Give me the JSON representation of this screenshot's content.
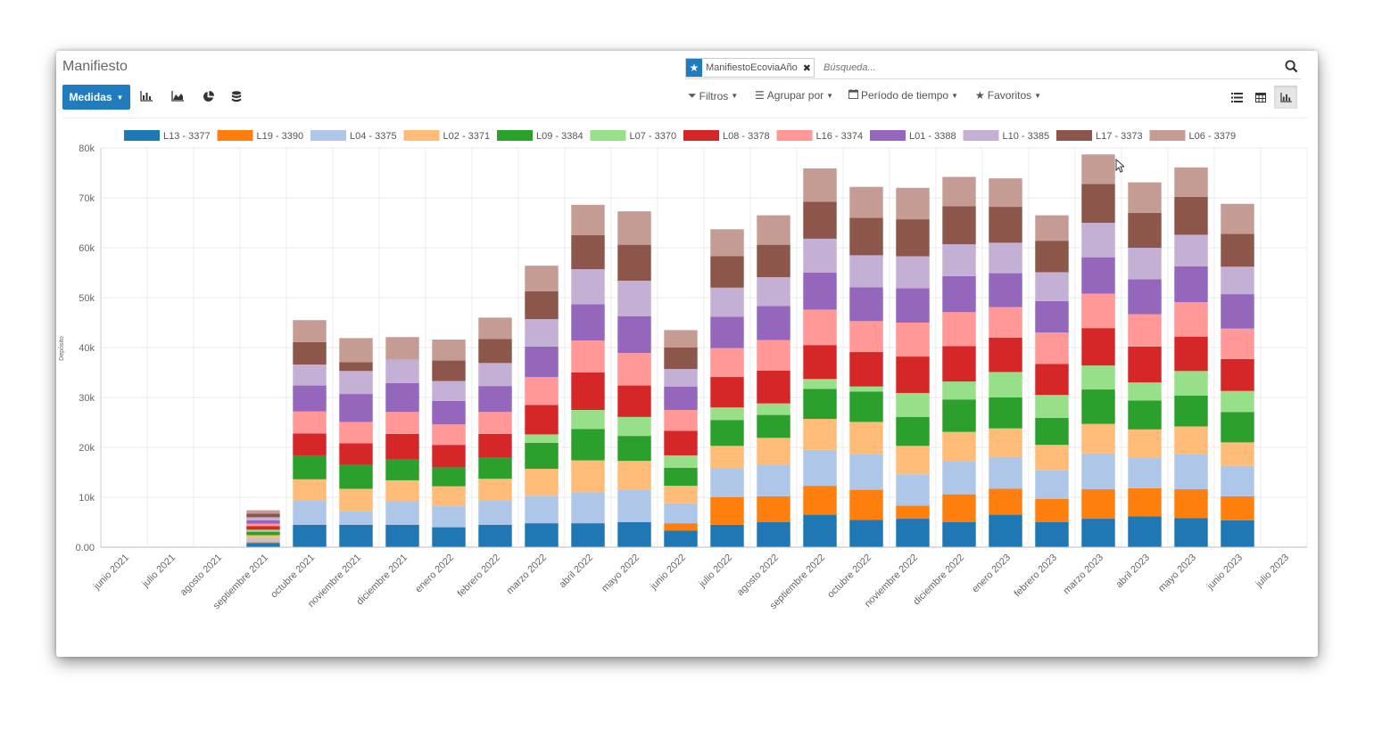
{
  "app": {
    "title": "Manifiesto"
  },
  "search": {
    "facet_label": "ManifiestoEcoviaAño",
    "facet_icon": "star-icon",
    "placeholder": "Búsqueda..."
  },
  "toolbar": {
    "measures_label": "Medidas",
    "chart_icons": [
      "bar-chart-icon",
      "area-chart-icon",
      "pie-chart-icon",
      "database-icon"
    ],
    "filters_label": "Filtros",
    "group_by_label": "Agrupar por",
    "period_label": "Período de tiempo",
    "favorites_label": "Favoritos",
    "views": [
      "list-view-icon",
      "pivot-view-icon",
      "graph-view-icon"
    ]
  },
  "colors": {
    "accent": "#1f7cbf"
  },
  "chart_data": {
    "type": "bar",
    "stacked": true,
    "ylabel": "Depósito",
    "ylim": [
      0,
      80000
    ],
    "yticks": [
      "0.00",
      "10k",
      "20k",
      "30k",
      "40k",
      "50k",
      "60k",
      "70k",
      "80k"
    ],
    "legend_position": "top",
    "categories": [
      "junio 2021",
      "julio 2021",
      "agosto 2021",
      "septiembre 2021",
      "octubre 2021",
      "noviembre 2021",
      "diciembre 2021",
      "enero 2022",
      "febrero 2022",
      "marzo 2022",
      "abril 2022",
      "mayo 2022",
      "junio 2022",
      "julio 2022",
      "agosto 2022",
      "septiembre 2022",
      "octubre 2022",
      "noviembre 2022",
      "diciembre 2022",
      "enero 2023",
      "febrero 2023",
      "marzo 2023",
      "abril 2023",
      "mayo 2023",
      "junio 2023",
      "julio 2023"
    ],
    "series": [
      {
        "name": "L13 - 3377",
        "color": "#1f77b4",
        "values": [
          0,
          0,
          0,
          800,
          4500,
          4500,
          4500,
          4000,
          4500,
          4800,
          4800,
          5000,
          3300,
          4500,
          5000,
          6500,
          5500,
          5700,
          5000,
          6500,
          5000,
          5700,
          6200,
          5800,
          5400,
          0
        ]
      },
      {
        "name": "L19 - 3390",
        "color": "#ff7f0e",
        "values": [
          0,
          0,
          0,
          200,
          0,
          0,
          0,
          0,
          0,
          0,
          0,
          0,
          1500,
          5500,
          5200,
          5800,
          6000,
          2600,
          5600,
          5200,
          4700,
          5900,
          5600,
          5800,
          4800,
          0
        ]
      },
      {
        "name": "L04 - 3375",
        "color": "#aec7e8",
        "values": [
          0,
          0,
          0,
          700,
          4800,
          2700,
          4700,
          4200,
          4800,
          5500,
          6200,
          6500,
          4000,
          5800,
          6300,
          7200,
          7200,
          6300,
          6700,
          6400,
          5700,
          7200,
          6200,
          7100,
          6100,
          0
        ]
      },
      {
        "name": "L02 - 3371",
        "color": "#ffbb78",
        "values": [
          0,
          0,
          0,
          700,
          4300,
          4500,
          4200,
          4000,
          4400,
          5400,
          6400,
          5800,
          3500,
          4500,
          5400,
          6200,
          6400,
          5700,
          5800,
          5700,
          5100,
          5900,
          5600,
          5500,
          4700,
          0
        ]
      },
      {
        "name": "L09 - 3384",
        "color": "#2ca02c",
        "values": [
          0,
          0,
          0,
          700,
          4800,
          4800,
          4200,
          3800,
          4200,
          5200,
          6300,
          5000,
          3600,
          5200,
          4600,
          6000,
          6100,
          5800,
          6500,
          6200,
          5400,
          6900,
          5800,
          6200,
          6100,
          0
        ]
      },
      {
        "name": "L07 - 3370",
        "color": "#98df8a",
        "values": [
          0,
          0,
          0,
          400,
          0,
          0,
          0,
          0,
          0,
          1700,
          3800,
          3800,
          2500,
          2500,
          2300,
          2000,
          1000,
          4800,
          3600,
          5100,
          4600,
          4800,
          3600,
          4900,
          4200,
          0
        ]
      },
      {
        "name": "L08 - 3378",
        "color": "#d62728",
        "values": [
          0,
          0,
          0,
          700,
          4400,
          4300,
          5100,
          4500,
          4800,
          5900,
          7500,
          6300,
          4900,
          6100,
          6600,
          6800,
          6900,
          7300,
          7100,
          6900,
          6200,
          7500,
          7200,
          6900,
          6400,
          0
        ]
      },
      {
        "name": "L16 - 3374",
        "color": "#ff9896",
        "values": [
          0,
          0,
          0,
          500,
          4400,
          4300,
          4400,
          4100,
          4400,
          5600,
          6400,
          6500,
          4200,
          5800,
          6100,
          7100,
          6200,
          6800,
          6800,
          6100,
          6300,
          6900,
          6500,
          6900,
          6100,
          0
        ]
      },
      {
        "name": "L01 - 3388",
        "color": "#9467bd",
        "values": [
          0,
          0,
          0,
          700,
          5200,
          5600,
          5800,
          4700,
          5200,
          6100,
          7300,
          7400,
          4700,
          6300,
          6800,
          7400,
          6800,
          6900,
          7200,
          6800,
          6300,
          7300,
          7000,
          7200,
          6900,
          0
        ]
      },
      {
        "name": "L10 - 3385",
        "color": "#c5b0d5",
        "values": [
          0,
          0,
          0,
          600,
          4200,
          4600,
          4700,
          4000,
          4600,
          5500,
          7000,
          7100,
          3500,
          5800,
          5800,
          6800,
          6400,
          6400,
          6400,
          6100,
          5800,
          6900,
          6300,
          6300,
          5500,
          0
        ]
      },
      {
        "name": "L17 - 3373",
        "color": "#8c564b",
        "values": [
          0,
          0,
          0,
          700,
          4500,
          1800,
          0,
          4100,
          4800,
          5600,
          6800,
          7200,
          4300,
          6300,
          6500,
          7400,
          7500,
          7400,
          7600,
          7200,
          6300,
          7800,
          7000,
          7600,
          6600,
          0
        ]
      },
      {
        "name": "L06 - 3379",
        "color": "#c49c94",
        "values": [
          0,
          0,
          0,
          700,
          4400,
          4800,
          4500,
          4200,
          4300,
          5100,
          6100,
          6700,
          3500,
          5400,
          5900,
          6700,
          6200,
          6300,
          5900,
          5700,
          5100,
          5900,
          6100,
          5900,
          6000,
          0
        ]
      }
    ]
  }
}
